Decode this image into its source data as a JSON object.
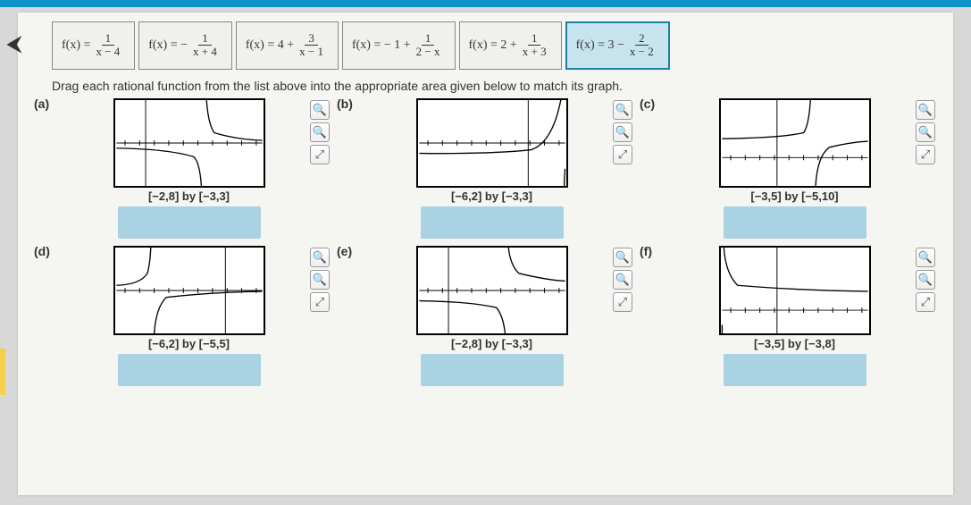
{
  "ui": {
    "back_icon": "⮜",
    "zoom_in": "🔍",
    "zoom_out": "🔍",
    "popout": "⇱"
  },
  "instruction": "Drag each rational function from the list above into the appropriate area given below to match its graph.",
  "functions": [
    {
      "lhs": "f(x) =",
      "num": "1",
      "den": "x − 4",
      "pre": "",
      "selected": false
    },
    {
      "lhs": "f(x) =",
      "num": "1",
      "den": "x + 4",
      "pre": "−",
      "selected": false
    },
    {
      "lhs": "f(x) = 4 +",
      "num": "3",
      "den": "x − 1",
      "pre": "",
      "selected": false
    },
    {
      "lhs": "f(x) = − 1 +",
      "num": "1",
      "den": "2 − x",
      "pre": "",
      "selected": false
    },
    {
      "lhs": "f(x) = 2 +",
      "num": "1",
      "den": "x + 3",
      "pre": "",
      "selected": false
    },
    {
      "lhs": "f(x) = 3 −",
      "num": "2",
      "den": "x − 2",
      "pre": "",
      "selected": true
    }
  ],
  "cells": [
    {
      "label": "(a)",
      "domain": "[−2,8] by [−3,3]",
      "svg": "a"
    },
    {
      "label": "(b)",
      "domain": "[−6,2] by [−3,3]",
      "svg": "b"
    },
    {
      "label": "(c)",
      "domain": "[−3,5] by [−5,10]",
      "svg": "c"
    },
    {
      "label": "(d)",
      "domain": "[−6,2] by [−5,5]",
      "svg": "d"
    },
    {
      "label": "(e)",
      "domain": "[−2,8] by [−3,3]",
      "svg": "e"
    },
    {
      "label": "(f)",
      "domain": "[−3,5] by [−3,8]",
      "svg": "f"
    }
  ],
  "style": {
    "graph_stroke": "#000000",
    "graph_stroke_width": 1.4,
    "axis_stroke": "#000000",
    "axis_width": 1,
    "tick_len": 3
  }
}
